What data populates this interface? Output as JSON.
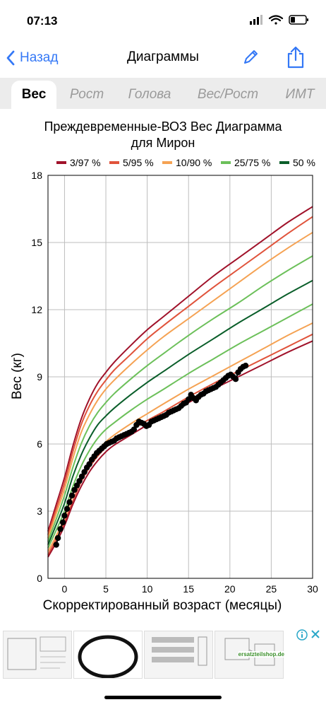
{
  "status": {
    "time": "07:13"
  },
  "nav": {
    "back_label": "Назад",
    "title": "Диаграммы"
  },
  "tabs": [
    {
      "label": "Вес",
      "active": true
    },
    {
      "label": "Рост",
      "active": false
    },
    {
      "label": "Голова",
      "active": false
    },
    {
      "label": "Вес/Рост",
      "active": false
    },
    {
      "label": "ИМТ",
      "active": false
    }
  ],
  "chart_data": {
    "type": "line",
    "title_line1": "Преждевременные-ВОЗ Вес Диаграмма",
    "title_line2": "для Мирон",
    "xlabel": "Скорректированный возраст (месяцы)",
    "ylabel": "Вес (кг)",
    "xlim": [
      -2,
      30
    ],
    "ylim": [
      0,
      18
    ],
    "x_ticks": [
      0,
      5,
      10,
      15,
      20,
      25,
      30
    ],
    "y_ticks": [
      0,
      3,
      6,
      9,
      12,
      15,
      18
    ],
    "grid": true,
    "legend_position": "top",
    "legend": [
      {
        "name": "3/97 %",
        "color": "#a0122a"
      },
      {
        "name": "5/95 %",
        "color": "#e0533b"
      },
      {
        "name": "10/90 %",
        "color": "#f5a253"
      },
      {
        "name": "25/75 %",
        "color": "#6cc05a"
      },
      {
        "name": "50 %",
        "color": "#0a5e2a"
      }
    ],
    "percentile_x": [
      -2,
      -1,
      0,
      1,
      2,
      3,
      4,
      5,
      6,
      8,
      10,
      12,
      15,
      18,
      21,
      24,
      27,
      30
    ],
    "percentile_curves": [
      {
        "pct": "97",
        "color": "#a0122a",
        "values": [
          2.1,
          3.3,
          4.5,
          5.9,
          7.1,
          8.0,
          8.7,
          9.2,
          9.65,
          10.4,
          11.1,
          11.7,
          12.6,
          13.5,
          14.3,
          15.1,
          15.9,
          16.6
        ]
      },
      {
        "pct": "95",
        "color": "#e0533b",
        "values": [
          1.95,
          3.1,
          4.25,
          5.65,
          6.85,
          7.7,
          8.35,
          8.85,
          9.3,
          10.0,
          10.7,
          11.3,
          12.15,
          13.0,
          13.8,
          14.6,
          15.4,
          16.15
        ]
      },
      {
        "pct": "90",
        "color": "#f5a253",
        "values": [
          1.8,
          2.9,
          4.0,
          5.35,
          6.5,
          7.3,
          7.95,
          8.45,
          8.85,
          9.55,
          10.2,
          10.8,
          11.6,
          12.4,
          13.2,
          14.0,
          14.75,
          15.45
        ]
      },
      {
        "pct": "75",
        "color": "#6cc05a",
        "values": [
          1.65,
          2.65,
          3.7,
          4.95,
          6.0,
          6.8,
          7.4,
          7.85,
          8.25,
          8.9,
          9.5,
          10.05,
          10.85,
          11.6,
          12.3,
          13.05,
          13.75,
          14.4
        ]
      },
      {
        "pct": "50",
        "color": "#0a5e2a",
        "values": [
          1.5,
          2.4,
          3.35,
          4.55,
          5.5,
          6.25,
          6.85,
          7.25,
          7.6,
          8.2,
          8.75,
          9.25,
          10.0,
          10.7,
          11.4,
          12.05,
          12.7,
          13.3
        ]
      },
      {
        "pct": "25",
        "color": "#6cc05a",
        "values": [
          1.35,
          2.15,
          3.0,
          4.1,
          5.0,
          5.7,
          6.25,
          6.65,
          6.95,
          7.5,
          8.0,
          8.45,
          9.15,
          9.8,
          10.45,
          11.05,
          11.65,
          12.25
        ]
      },
      {
        "pct": "10",
        "color": "#f5a253",
        "values": [
          1.2,
          1.9,
          2.7,
          3.7,
          4.55,
          5.2,
          5.7,
          6.1,
          6.4,
          6.9,
          7.35,
          7.8,
          8.45,
          9.05,
          9.65,
          10.25,
          10.85,
          11.4
        ]
      },
      {
        "pct": "5",
        "color": "#e0533b",
        "values": [
          1.05,
          1.75,
          2.5,
          3.45,
          4.3,
          4.95,
          5.45,
          5.85,
          6.15,
          6.6,
          7.05,
          7.45,
          8.1,
          8.7,
          9.25,
          9.8,
          10.35,
          10.9
        ]
      },
      {
        "pct": "3",
        "color": "#a0122a",
        "values": [
          0.95,
          1.6,
          2.35,
          3.3,
          4.1,
          4.75,
          5.25,
          5.65,
          5.95,
          6.4,
          6.85,
          7.25,
          7.85,
          8.45,
          9.0,
          9.55,
          10.1,
          10.6
        ]
      }
    ],
    "measurements": {
      "name": "",
      "color": "#000000",
      "x": [
        -1.0,
        -0.8,
        -0.5,
        -0.2,
        0.0,
        0.3,
        0.6,
        0.9,
        1.2,
        1.5,
        1.8,
        2.1,
        2.4,
        2.7,
        3.0,
        3.3,
        3.6,
        3.9,
        4.2,
        4.5,
        4.8,
        5.1,
        5.4,
        5.7,
        6.0,
        6.3,
        6.6,
        6.9,
        7.2,
        7.5,
        7.8,
        8.1,
        8.4,
        8.7,
        9.0,
        9.3,
        9.6,
        9.9,
        10.2,
        10.5,
        10.8,
        11.1,
        11.4,
        11.7,
        12.0,
        12.3,
        12.6,
        12.9,
        13.2,
        13.5,
        13.8,
        14.1,
        14.4,
        14.7,
        15.0,
        15.3,
        15.6,
        15.9,
        16.2,
        16.5,
        16.8,
        17.1,
        17.4,
        17.7,
        18.0,
        18.3,
        18.6,
        18.9,
        19.2,
        19.5,
        19.8,
        20.1,
        20.4,
        20.7,
        21.0,
        21.3,
        21.6,
        21.9
      ],
      "y": [
        1.5,
        1.8,
        2.2,
        2.5,
        2.8,
        3.1,
        3.4,
        3.7,
        3.95,
        4.15,
        4.35,
        4.55,
        4.75,
        4.95,
        5.1,
        5.3,
        5.45,
        5.6,
        5.7,
        5.8,
        5.9,
        6.0,
        6.05,
        6.1,
        6.15,
        6.25,
        6.3,
        6.35,
        6.4,
        6.45,
        6.5,
        6.55,
        6.65,
        6.85,
        7.0,
        6.95,
        6.9,
        6.8,
        6.85,
        7.0,
        7.05,
        7.1,
        7.15,
        7.2,
        7.25,
        7.3,
        7.4,
        7.45,
        7.5,
        7.55,
        7.6,
        7.7,
        7.8,
        7.85,
        8.0,
        8.2,
        8.05,
        7.95,
        8.1,
        8.2,
        8.25,
        8.35,
        8.4,
        8.45,
        8.5,
        8.55,
        8.65,
        8.75,
        8.85,
        8.95,
        9.05,
        9.1,
        9.0,
        8.9,
        9.2,
        9.35,
        9.45,
        9.5
      ]
    }
  },
  "ad": {
    "brand_text": "ersatzteilshop.de"
  }
}
